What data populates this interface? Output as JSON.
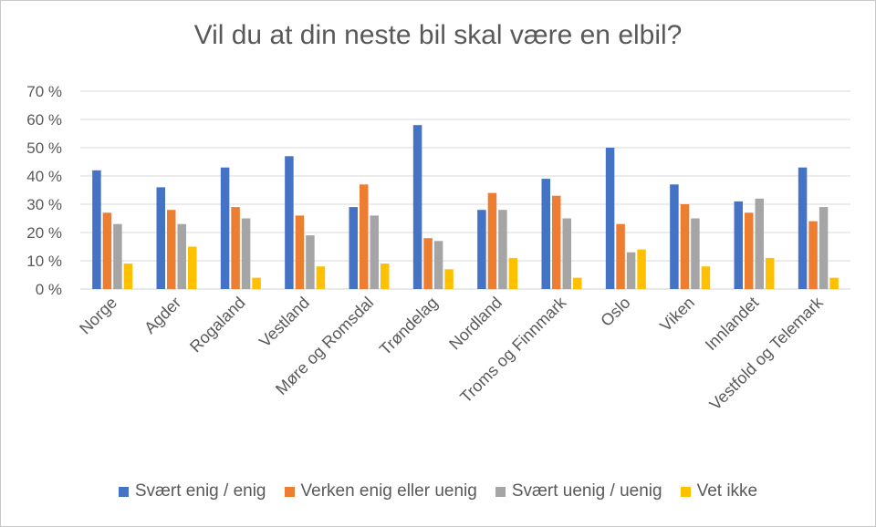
{
  "chart_data": {
    "type": "bar",
    "title": "Vil du at din neste bil skal være en elbil?",
    "categories": [
      "Norge",
      "Agder",
      "Rogaland",
      "Vestland",
      "Møre og Romsdal",
      "Trøndelag",
      "Nordland",
      "Troms og Finnmark",
      "Oslo",
      "Viken",
      "Innlandet",
      "Vestfold og Telemark"
    ],
    "ylim": [
      0,
      70
    ],
    "yticks": [
      "0 %",
      "10 %",
      "20 %",
      "30 %",
      "40 %",
      "50 %",
      "60 %",
      "70 %"
    ],
    "grid": true,
    "legend_position": "bottom",
    "series": [
      {
        "name": "Svært enig / enig",
        "color": "#4472C4",
        "values": [
          42,
          36,
          43,
          47,
          29,
          58,
          28,
          39,
          50,
          37,
          31,
          43
        ]
      },
      {
        "name": "Verken enig eller uenig",
        "color": "#ED7D31",
        "values": [
          27,
          28,
          29,
          26,
          37,
          18,
          34,
          33,
          23,
          30,
          27,
          24
        ]
      },
      {
        "name": "Svært uenig / uenig",
        "color": "#A5A5A5",
        "values": [
          23,
          23,
          25,
          19,
          26,
          17,
          28,
          25,
          13,
          25,
          32,
          29
        ]
      },
      {
        "name": "Vet ikke",
        "color": "#FFC000",
        "values": [
          9,
          15,
          4,
          8,
          9,
          7,
          11,
          4,
          14,
          8,
          11,
          4
        ]
      }
    ]
  }
}
